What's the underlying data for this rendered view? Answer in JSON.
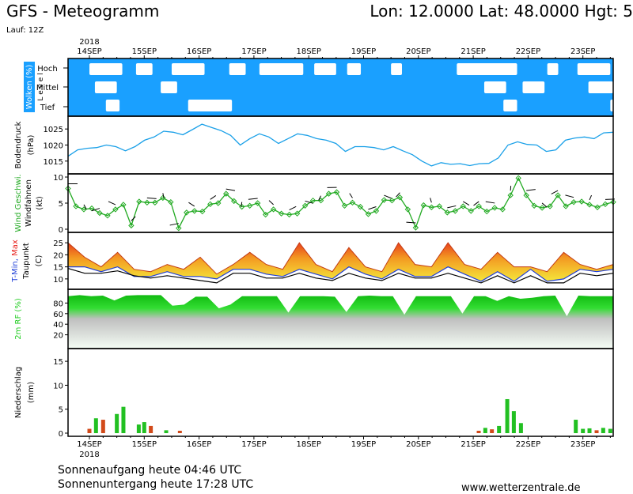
{
  "header": {
    "title": "GFS - Meteogramm",
    "coords": "Lon: 12.0000 Lat: 48.0000 Hgt: 5",
    "run": "Lauf: 12Z"
  },
  "footer": {
    "sunrise": "Sonnenaufgang heute 04:46 UTC",
    "sunset": "Sonnenuntergang heute 17:28 UTC",
    "website": "www.wetterzentrale.de"
  },
  "colors": {
    "cloud": "#1aa0ff",
    "pressure": "#1aa0e8",
    "wind": "#22aa22",
    "temp_warm": "#f28a1e",
    "temp_line": "#000000",
    "rh": "#22cc22",
    "precip_green": "#22c022",
    "precip_red": "#d24a1a",
    "tmin": "#1f3fd8",
    "tmax": "#e8201c"
  },
  "chart_data": [
    {
      "type": "area",
      "panel": "clouds",
      "year": "2018",
      "date_labels": [
        "14SEP",
        "15SEP",
        "16SEP",
        "17SEP",
        "18SEP",
        "19SEP",
        "20SEP",
        "21SEP",
        "22SEP",
        "23SEP"
      ],
      "ylabel": "Wolken (%)",
      "ylabel2": "L e v e l",
      "levels": [
        "Hoch",
        "Mittel",
        "Tief"
      ],
      "clear_patches": [
        {
          "level": "Hoch",
          "from": 0.0,
          "to": 0.6
        },
        {
          "level": "Hoch",
          "from": 0.85,
          "to": 1.15
        },
        {
          "level": "Hoch",
          "from": 1.5,
          "to": 2.1
        },
        {
          "level": "Hoch",
          "from": 2.55,
          "to": 2.85
        },
        {
          "level": "Hoch",
          "from": 3.1,
          "to": 3.9
        },
        {
          "level": "Hoch",
          "from": 4.1,
          "to": 4.5
        },
        {
          "level": "Hoch",
          "from": 4.7,
          "to": 4.95
        },
        {
          "level": "Hoch",
          "from": 5.5,
          "to": 5.7
        },
        {
          "level": "Hoch",
          "from": 6.7,
          "to": 7.8
        },
        {
          "level": "Hoch",
          "from": 8.35,
          "to": 8.55
        },
        {
          "level": "Hoch",
          "from": 8.9,
          "to": 9.5
        },
        {
          "level": "Mittel",
          "from": 0.1,
          "to": 0.5
        },
        {
          "level": "Mittel",
          "from": 1.3,
          "to": 1.6
        },
        {
          "level": "Mittel",
          "from": 7.2,
          "to": 7.6
        },
        {
          "level": "Mittel",
          "from": 7.9,
          "to": 8.3
        },
        {
          "level": "Mittel",
          "from": 9.1,
          "to": 9.8
        },
        {
          "level": "Tief",
          "from": 1.8,
          "to": 2.6
        },
        {
          "level": "Tief",
          "from": 0.3,
          "to": 0.55
        },
        {
          "level": "Tief",
          "from": 7.55,
          "to": 7.8
        },
        {
          "level": "Tief",
          "from": 9.5,
          "to": 10.2
        }
      ]
    },
    {
      "type": "line",
      "panel": "pressure",
      "ylabel": "Bodendruck",
      "unit": "(hPa)",
      "yticks": [
        1015,
        1020,
        1025
      ],
      "ylim": [
        1012,
        1028
      ],
      "values": [
        1016.5,
        1018.5,
        1019,
        1019.2,
        1020,
        1019.5,
        1018.2,
        1019.5,
        1021.5,
        1022.5,
        1024.3,
        1024,
        1023.2,
        1024.8,
        1026.5,
        1025.5,
        1024.5,
        1023,
        1020,
        1022,
        1023.5,
        1022.5,
        1020.5,
        1022,
        1023.5,
        1023,
        1022,
        1021.5,
        1020.5,
        1018,
        1019.5,
        1019.5,
        1019.2,
        1018.5,
        1019.5,
        1018.2,
        1017,
        1015,
        1013.5,
        1014.5,
        1014,
        1014.2,
        1013.6,
        1014.2,
        1014.3,
        1016,
        1020,
        1021,
        1020.2,
        1020,
        1018,
        1018.5,
        1021.5,
        1022.2,
        1022.5,
        1022,
        1023.8,
        1024
      ]
    },
    {
      "type": "line",
      "panel": "wind",
      "ylabel": "Wind Geschwi.",
      "ylabel2": "Windfahnen",
      "unit": "(kt)",
      "yticks": [
        0,
        5,
        10
      ],
      "ylim": [
        0,
        10
      ],
      "values": [
        7.8,
        4.4,
        3.8,
        4,
        3.1,
        2.6,
        3.8,
        4.7,
        0.7,
        5.3,
        5.1,
        5.1,
        6,
        5.2,
        0.2,
        3.2,
        3.5,
        3.4,
        4.8,
        5,
        6.8,
        5.4,
        4.3,
        4.5,
        5,
        2.8,
        3.8,
        3,
        2.8,
        3,
        4.5,
        5.5,
        5.5,
        6.8,
        7.1,
        4.5,
        5.1,
        4.3,
        2.9,
        3.5,
        5.6,
        5.5,
        6.1,
        3.8,
        0.3,
        4.6,
        4.2,
        4.4,
        3.2,
        3.5,
        4.4,
        3.5,
        4.4,
        3.4,
        4.1,
        3.8,
        6.5,
        9.8,
        6.5,
        4.5,
        4.1,
        4.4,
        6.5,
        4.4,
        5.2,
        5.3,
        4.7,
        4.2,
        4.8,
        5.2
      ]
    },
    {
      "type": "area",
      "panel": "temperature",
      "ylabel": "T-Min, Max",
      "ylabel2": "Taupunkt",
      "unit": "(C)",
      "yticks": [
        10,
        15,
        20,
        25
      ],
      "ylim": [
        7,
        28
      ],
      "series": [
        {
          "name": "T-Max",
          "values": [
            25,
            19,
            15,
            21,
            14,
            13,
            16,
            14,
            19,
            12,
            16,
            21,
            16,
            14,
            25,
            16,
            13,
            23,
            15,
            13,
            25,
            16,
            15,
            25,
            16,
            14,
            21,
            15,
            15,
            13,
            21,
            16,
            14,
            16
          ]
        },
        {
          "name": "T-Min",
          "values": [
            15,
            15,
            13,
            15,
            11,
            11,
            13,
            11,
            11,
            10,
            14,
            14,
            12,
            11,
            14,
            12,
            10,
            15,
            12,
            10,
            14,
            11,
            11,
            15,
            12,
            9,
            13,
            9,
            14,
            9,
            10,
            14,
            13,
            14
          ]
        },
        {
          "name": "Taupunkt",
          "values": [
            15,
            13,
            13,
            14,
            12,
            11,
            12,
            11,
            10,
            9,
            13,
            13,
            11,
            11,
            13,
            11,
            10,
            13,
            11,
            10,
            13,
            11,
            11,
            13,
            11,
            9,
            12,
            9,
            12,
            9,
            9,
            13,
            12,
            13
          ]
        }
      ]
    },
    {
      "type": "area",
      "panel": "humidity",
      "ylabel": "2m RF (%)",
      "yticks": [
        20,
        40,
        60,
        80
      ],
      "ylim": [
        0,
        100
      ],
      "values": [
        93,
        95,
        93,
        94,
        85,
        94,
        95,
        95,
        95,
        75,
        77,
        92,
        92,
        70,
        77,
        93,
        93,
        93,
        93,
        62,
        93,
        93,
        93,
        92,
        63,
        93,
        94,
        93,
        93,
        58,
        93,
        93,
        93,
        93,
        60,
        93,
        93,
        84,
        93,
        88,
        90,
        93,
        94,
        55,
        94,
        93,
        93,
        93
      ]
    },
    {
      "type": "bar",
      "panel": "precipitation",
      "ylabel": "Niederschlag",
      "unit": "(mm)",
      "yticks": [
        0,
        5,
        10,
        15
      ],
      "ylim": [
        0,
        17
      ],
      "year": "2018",
      "bars": [
        {
          "t": 0.0,
          "v": 0.9,
          "c": "red"
        },
        {
          "t": 0.12,
          "v": 3.1,
          "c": "green"
        },
        {
          "t": 0.25,
          "v": 2.8,
          "c": "red"
        },
        {
          "t": 0.5,
          "v": 4.0,
          "c": "green"
        },
        {
          "t": 0.62,
          "v": 5.5,
          "c": "green"
        },
        {
          "t": 0.9,
          "v": 1.8,
          "c": "green"
        },
        {
          "t": 1.0,
          "v": 2.3,
          "c": "green"
        },
        {
          "t": 1.12,
          "v": 1.5,
          "c": "red"
        },
        {
          "t": 1.4,
          "v": 0.6,
          "c": "green"
        },
        {
          "t": 1.65,
          "v": 0.5,
          "c": "red"
        },
        {
          "t": 7.1,
          "v": 0.5,
          "c": "red"
        },
        {
          "t": 7.22,
          "v": 1.1,
          "c": "green"
        },
        {
          "t": 7.34,
          "v": 0.8,
          "c": "red"
        },
        {
          "t": 7.47,
          "v": 1.5,
          "c": "green"
        },
        {
          "t": 7.62,
          "v": 7.1,
          "c": "green"
        },
        {
          "t": 7.74,
          "v": 4.6,
          "c": "green"
        },
        {
          "t": 7.87,
          "v": 2.1,
          "c": "green"
        },
        {
          "t": 8.87,
          "v": 2.8,
          "c": "green"
        },
        {
          "t": 9.0,
          "v": 0.9,
          "c": "green"
        },
        {
          "t": 9.12,
          "v": 1.0,
          "c": "green"
        },
        {
          "t": 9.25,
          "v": 0.6,
          "c": "red"
        },
        {
          "t": 9.37,
          "v": 1.1,
          "c": "green"
        },
        {
          "t": 9.5,
          "v": 0.9,
          "c": "green"
        }
      ]
    }
  ]
}
